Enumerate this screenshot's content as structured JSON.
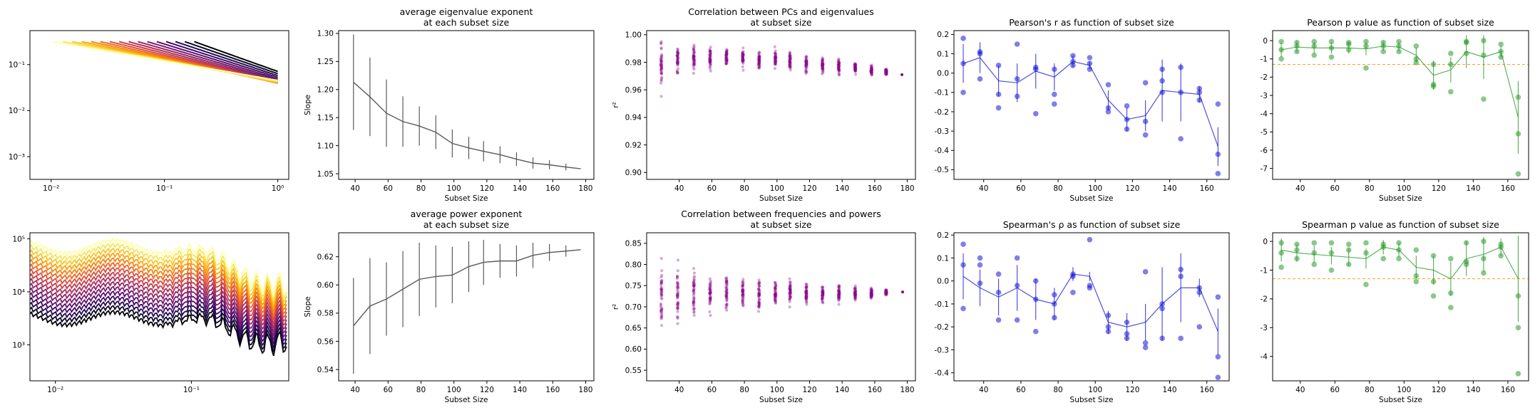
{
  "chart_data": [
    {
      "id": "A",
      "type": "line",
      "scale": "loglog",
      "title": "",
      "xlabel": "",
      "ylabel": "",
      "xlim": [
        0.0065,
        1.25
      ],
      "ylim": [
        0.00032,
        0.55
      ],
      "xticks": [
        {
          "v": 0.01,
          "label": "10⁻²"
        },
        {
          "v": 0.1,
          "label": "10⁻¹"
        },
        {
          "v": 1,
          "label": "10⁰"
        }
      ],
      "yticks": [
        {
          "v": 0.001,
          "label": "10⁻³"
        },
        {
          "v": 0.01,
          "label": "10⁻²"
        },
        {
          "v": 0.1,
          "label": "10⁻¹"
        }
      ],
      "series_count": 16,
      "colormap": "inferno"
    },
    {
      "id": "B",
      "type": "line",
      "title": "average eigenvalue exponent\nat each subset size",
      "xlabel": "Subset Size",
      "ylabel": "Slope",
      "xlim": [
        30,
        185
      ],
      "ylim": [
        1.04,
        1.305
      ],
      "xticks": [
        40,
        60,
        80,
        100,
        120,
        140,
        160,
        180
      ],
      "yticks": [
        1.05,
        1.1,
        1.15,
        1.2,
        1.25,
        1.3
      ],
      "x": [
        39,
        49,
        59,
        69,
        79,
        89,
        99,
        109,
        118,
        128,
        138,
        148,
        158,
        168,
        177
      ],
      "y": [
        1.213,
        1.187,
        1.158,
        1.143,
        1.135,
        1.124,
        1.104,
        1.096,
        1.09,
        1.084,
        1.076,
        1.069,
        1.066,
        1.062,
        1.059
      ],
      "err": [
        0.085,
        0.07,
        0.06,
        0.045,
        0.035,
        0.03,
        0.025,
        0.02,
        0.018,
        0.015,
        0.012,
        0.01,
        0.008,
        0.006,
        0.0
      ],
      "color": "#5a5a5a"
    },
    {
      "id": "C",
      "type": "scatter",
      "title": "Correlation between PCs and eigenvalues\nat subset size",
      "xlabel": "Subset Size",
      "ylabel": "r²",
      "xlim": [
        20,
        185
      ],
      "ylim": [
        0.895,
        1.003
      ],
      "xticks": [
        40,
        60,
        80,
        100,
        120,
        140,
        160,
        180
      ],
      "yticks": [
        0.9,
        0.92,
        0.94,
        0.96,
        0.98,
        1.0
      ],
      "x": [
        29,
        39,
        49,
        59,
        69,
        79,
        89,
        99,
        108,
        118,
        128,
        138,
        148,
        158,
        167,
        177
      ],
      "center": [
        0.978,
        0.982,
        0.983,
        0.983,
        0.984,
        0.983,
        0.982,
        0.982,
        0.981,
        0.979,
        0.978,
        0.977,
        0.976,
        0.974,
        0.973,
        0.971
      ],
      "spread": [
        0.03,
        0.018,
        0.016,
        0.014,
        0.012,
        0.012,
        0.012,
        0.011,
        0.01,
        0.01,
        0.009,
        0.008,
        0.007,
        0.006,
        0.004,
        0.0
      ],
      "color": "#8b0a8b"
    },
    {
      "id": "D",
      "type": "scatter",
      "title": "Pearson's r as function of subset size",
      "xlabel": "Subset Size",
      "ylabel": "",
      "xlim": [
        24,
        172
      ],
      "ylim": [
        -0.55,
        0.22
      ],
      "xticks": [
        40,
        60,
        80,
        100,
        120,
        140,
        160
      ],
      "yticks": [
        -0.5,
        -0.4,
        -0.3,
        -0.2,
        -0.1,
        0.0,
        0.1,
        0.2
      ],
      "x": [
        29,
        38,
        48,
        58,
        68,
        78,
        88,
        97,
        107,
        117,
        127,
        136,
        146,
        156,
        166
      ],
      "y": [
        0.05,
        0.08,
        -0.04,
        -0.05,
        0.01,
        -0.02,
        0.06,
        0.04,
        -0.14,
        -0.24,
        -0.22,
        -0.09,
        -0.1,
        -0.11,
        -0.38
      ],
      "err": [
        0.1,
        0.08,
        0.08,
        0.1,
        0.09,
        0.07,
        0.03,
        0.02,
        0.05,
        0.06,
        0.08,
        0.16,
        0.15,
        0.04,
        0.1
      ],
      "points": [
        [
          0.18,
          -0.1,
          0.05
        ],
        [
          0.11,
          0.1,
          -0.03
        ],
        [
          0.04,
          -0.11,
          -0.18
        ],
        [
          0.15,
          -0.12,
          -0.03
        ],
        [
          0.03,
          -0.21,
          0.02
        ],
        [
          0.02,
          -0.11,
          -0.16
        ],
        [
          0.09,
          0.04,
          0.06
        ],
        [
          0.08,
          0.02,
          0.05
        ],
        [
          -0.06,
          -0.2,
          -0.18
        ],
        [
          -0.17,
          -0.29,
          -0.24
        ],
        [
          -0.05,
          -0.32,
          -0.25
        ],
        [
          -0.04,
          0.02,
          -0.1
        ],
        [
          0.03,
          -0.34,
          -0.1
        ],
        [
          -0.08,
          -0.14,
          -0.1
        ],
        [
          -0.16,
          -0.42,
          -0.52
        ]
      ],
      "color": "#1515d8"
    },
    {
      "id": "E",
      "type": "scatter",
      "title": "Pearson p value as function of subset size",
      "xlabel": "Subset Size",
      "ylabel": "",
      "xlim": [
        24,
        172
      ],
      "ylim": [
        -7.6,
        0.55
      ],
      "xticks": [
        40,
        60,
        80,
        100,
        120,
        140,
        160
      ],
      "yticks": [
        -7,
        -6,
        -5,
        -4,
        -3,
        -2,
        -1,
        0
      ],
      "threshold": -1.3,
      "x": [
        29,
        38,
        48,
        58,
        68,
        78,
        88,
        97,
        107,
        117,
        127,
        136,
        146,
        156,
        166
      ],
      "y": [
        -0.5,
        -0.35,
        -0.4,
        -0.4,
        -0.4,
        -0.45,
        -0.3,
        -0.35,
        -0.8,
        -1.9,
        -1.6,
        -0.6,
        -0.9,
        -0.6,
        -4.2
      ],
      "err": [
        0.4,
        0.3,
        0.3,
        0.3,
        0.3,
        0.35,
        0.25,
        0.25,
        0.4,
        0.8,
        0.7,
        0.9,
        1.2,
        0.3,
        2.0
      ],
      "points": [
        [
          -0.05,
          -1.0,
          -0.5
        ],
        [
          -0.1,
          -0.6,
          -0.3
        ],
        [
          -0.05,
          -0.8,
          -0.3
        ],
        [
          -0.05,
          -0.9,
          -0.4
        ],
        [
          -0.1,
          -0.5,
          -0.2
        ],
        [
          -0.05,
          -1.5,
          -0.3
        ],
        [
          -0.1,
          -0.6,
          -0.3
        ],
        [
          -0.05,
          -0.3,
          -0.6
        ],
        [
          -0.3,
          -1.2,
          -1.0
        ],
        [
          -1.3,
          -2.5,
          -2.4
        ],
        [
          -0.7,
          -2.8,
          -1.3
        ],
        [
          -0.05,
          -0.1,
          -0.7
        ],
        [
          0.0,
          -3.2,
          -0.8
        ],
        [
          -0.2,
          -0.6,
          -0.9
        ],
        [
          -3.1,
          -5.1,
          -7.3
        ]
      ],
      "color": "#2a9a2a"
    },
    {
      "id": "F",
      "type": "line",
      "scale": "loglog",
      "title": "",
      "xlabel": "",
      "ylabel": "",
      "xlim": [
        0.0065,
        0.52
      ],
      "ylim": [
        210,
        130000
      ],
      "xticks": [
        {
          "v": 0.01,
          "label": "10⁻²"
        },
        {
          "v": 0.1,
          "label": "10⁻¹"
        }
      ],
      "yticks": [
        {
          "v": 1000,
          "label": "10³"
        },
        {
          "v": 10000,
          "label": "10⁴"
        },
        {
          "v": 100000,
          "label": "10⁵"
        }
      ],
      "series_count": 16,
      "colormap": "inferno"
    },
    {
      "id": "G",
      "type": "line",
      "title": "average power exponent\nat each subset size",
      "xlabel": "Subset Size",
      "ylabel": "Slope",
      "xlim": [
        30,
        185
      ],
      "ylim": [
        0.532,
        0.637
      ],
      "xticks": [
        40,
        60,
        80,
        100,
        120,
        140,
        160,
        180
      ],
      "yticks": [
        0.54,
        0.56,
        0.58,
        0.6,
        0.62
      ],
      "x": [
        39,
        49,
        59,
        69,
        79,
        89,
        99,
        109,
        118,
        128,
        138,
        148,
        158,
        168,
        177
      ],
      "y": [
        0.571,
        0.585,
        0.59,
        0.597,
        0.604,
        0.606,
        0.607,
        0.613,
        0.616,
        0.617,
        0.617,
        0.621,
        0.623,
        0.624,
        0.625
      ],
      "err": [
        0.034,
        0.034,
        0.026,
        0.027,
        0.026,
        0.022,
        0.02,
        0.018,
        0.016,
        0.012,
        0.011,
        0.009,
        0.006,
        0.004,
        0.0
      ],
      "color": "#5a5a5a"
    },
    {
      "id": "H",
      "type": "scatter",
      "title": "Correlation between frequencies and powers\nat subset size",
      "xlabel": "Subset Size",
      "ylabel": "r²",
      "xlim": [
        20,
        185
      ],
      "ylim": [
        0.525,
        0.875
      ],
      "xticks": [
        40,
        60,
        80,
        100,
        120,
        140,
        160,
        180
      ],
      "yticks": [
        0.55,
        0.6,
        0.65,
        0.7,
        0.75,
        0.8,
        0.85
      ],
      "x": [
        29,
        39,
        49,
        59,
        69,
        79,
        89,
        99,
        108,
        118,
        128,
        138,
        148,
        158,
        167,
        177
      ],
      "center": [
        0.73,
        0.73,
        0.73,
        0.73,
        0.73,
        0.73,
        0.73,
        0.73,
        0.73,
        0.73,
        0.73,
        0.73,
        0.73,
        0.732,
        0.735,
        0.735
      ],
      "spread": [
        0.14,
        0.11,
        0.085,
        0.075,
        0.07,
        0.06,
        0.055,
        0.05,
        0.045,
        0.04,
        0.035,
        0.03,
        0.025,
        0.02,
        0.012,
        0.0
      ],
      "color": "#8b0a8b"
    },
    {
      "id": "I",
      "type": "scatter",
      "title": "Spearman's ρ as function of subset size",
      "xlabel": "Subset Size",
      "ylabel": "",
      "xlim": [
        24,
        172
      ],
      "ylim": [
        -0.435,
        0.21
      ],
      "xticks": [
        40,
        60,
        80,
        100,
        120,
        140,
        160
      ],
      "yticks": [
        -0.4,
        -0.3,
        -0.2,
        -0.1,
        0.0,
        0.1,
        0.2
      ],
      "x": [
        29,
        38,
        48,
        58,
        68,
        78,
        88,
        97,
        107,
        117,
        127,
        136,
        146,
        156,
        166
      ],
      "y": [
        0.02,
        -0.03,
        -0.07,
        -0.03,
        -0.08,
        -0.1,
        0.03,
        0.02,
        -0.18,
        -0.2,
        -0.18,
        -0.1,
        -0.03,
        -0.03,
        -0.22
      ],
      "err": [
        0.1,
        0.08,
        0.08,
        0.1,
        0.09,
        0.07,
        0.03,
        0.02,
        0.05,
        0.06,
        0.08,
        0.16,
        0.15,
        0.04,
        0.1
      ],
      "points": [
        [
          0.16,
          -0.12,
          0.07
        ],
        [
          0.1,
          0.07,
          -0.01
        ],
        [
          0.03,
          -0.17,
          -0.05
        ],
        [
          0.1,
          -0.17,
          -0.02
        ],
        [
          0.0,
          -0.22,
          -0.08
        ],
        [
          -0.06,
          -0.16,
          -0.1
        ],
        [
          0.03,
          -0.05,
          0.02
        ],
        [
          0.18,
          -0.03,
          -0.02
        ],
        [
          -0.15,
          -0.2,
          -0.22
        ],
        [
          -0.18,
          -0.25,
          -0.23
        ],
        [
          0.04,
          -0.29,
          -0.27
        ],
        [
          -0.1,
          -0.25,
          -0.12
        ],
        [
          0.05,
          -0.25,
          0.02
        ],
        [
          -0.03,
          -0.2,
          -0.05
        ],
        [
          -0.07,
          -0.33,
          -0.42
        ]
      ],
      "color": "#1515d8"
    },
    {
      "id": "J",
      "type": "scatter",
      "title": "Spearman p value as function of subset size",
      "xlabel": "Subset Size",
      "ylabel": "",
      "xlim": [
        24,
        172
      ],
      "ylim": [
        -4.85,
        0.3
      ],
      "xticks": [
        40,
        60,
        80,
        100,
        120,
        140,
        160
      ],
      "yticks": [
        -4,
        -3,
        -2,
        -1,
        0
      ],
      "threshold": -1.3,
      "x": [
        29,
        38,
        48,
        58,
        68,
        78,
        88,
        97,
        107,
        117,
        127,
        136,
        146,
        156,
        166
      ],
      "y": [
        -0.3,
        -0.4,
        -0.45,
        -0.5,
        -0.55,
        -0.6,
        -0.2,
        -0.3,
        -0.9,
        -1.0,
        -1.3,
        -0.6,
        -0.45,
        -0.2,
        -1.3
      ],
      "err": [
        0.4,
        0.3,
        0.3,
        0.3,
        0.3,
        0.35,
        0.25,
        0.25,
        0.4,
        0.5,
        0.6,
        0.6,
        0.6,
        0.3,
        1.5
      ],
      "points": [
        [
          -0.05,
          -0.9,
          -0.4
        ],
        [
          -0.1,
          -0.6,
          -0.3
        ],
        [
          -0.05,
          -0.8,
          -0.4
        ],
        [
          -0.05,
          -1.0,
          -0.4
        ],
        [
          -0.1,
          -0.8,
          -0.3
        ],
        [
          -0.05,
          -1.5,
          -0.4
        ],
        [
          -0.1,
          -0.6,
          -0.2
        ],
        [
          -0.05,
          -0.3,
          -0.6
        ],
        [
          -0.3,
          -1.2,
          -1.4
        ],
        [
          -0.5,
          -1.9,
          -1.4
        ],
        [
          -0.6,
          -2.3,
          -1.8
        ],
        [
          -0.05,
          -0.8,
          -0.7
        ],
        [
          0.0,
          -1.1,
          -0.6
        ],
        [
          -0.1,
          -0.5,
          -0.2
        ],
        [
          -1.9,
          -4.6,
          -3.0
        ]
      ],
      "color": "#2a9a2a"
    }
  ]
}
